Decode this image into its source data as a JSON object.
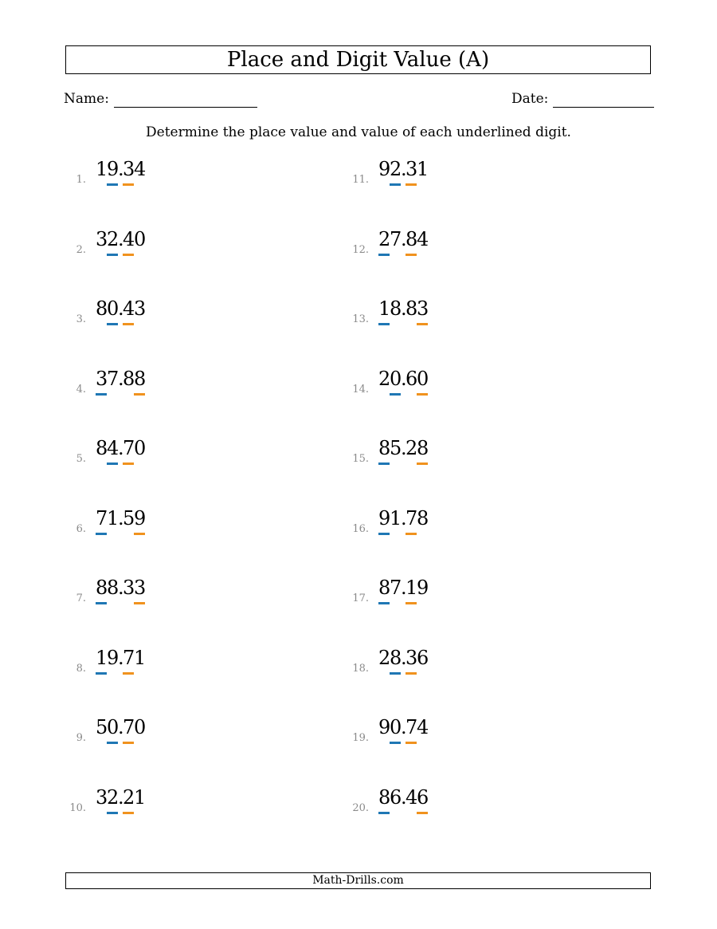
{
  "title": "Place and Digit Value (A)",
  "name_label": "Name:",
  "date_label": "Date:",
  "instructions": "Determine the place value and value of each underlined digit.",
  "footer": "Math-Drills.com",
  "colors": {
    "first_underline": "#1f77b4",
    "second_underline": "#f0921e"
  },
  "problems": [
    {
      "num": "1.",
      "value": "19.34",
      "underline_first": 1,
      "underline_second": 3
    },
    {
      "num": "2.",
      "value": "32.40",
      "underline_first": 1,
      "underline_second": 3
    },
    {
      "num": "3.",
      "value": "80.43",
      "underline_first": 1,
      "underline_second": 3
    },
    {
      "num": "4.",
      "value": "37.88",
      "underline_first": 0,
      "underline_second": 4
    },
    {
      "num": "5.",
      "value": "84.70",
      "underline_first": 1,
      "underline_second": 3
    },
    {
      "num": "6.",
      "value": "71.59",
      "underline_first": 0,
      "underline_second": 4
    },
    {
      "num": "7.",
      "value": "88.33",
      "underline_first": 0,
      "underline_second": 4
    },
    {
      "num": "8.",
      "value": "19.71",
      "underline_first": 0,
      "underline_second": 3
    },
    {
      "num": "9.",
      "value": "50.70",
      "underline_first": 1,
      "underline_second": 3
    },
    {
      "num": "10.",
      "value": "32.21",
      "underline_first": 1,
      "underline_second": 3
    },
    {
      "num": "11.",
      "value": "92.31",
      "underline_first": 1,
      "underline_second": 3
    },
    {
      "num": "12.",
      "value": "27.84",
      "underline_first": 0,
      "underline_second": 3
    },
    {
      "num": "13.",
      "value": "18.83",
      "underline_first": 0,
      "underline_second": 4
    },
    {
      "num": "14.",
      "value": "20.60",
      "underline_first": 1,
      "underline_second": 4
    },
    {
      "num": "15.",
      "value": "85.28",
      "underline_first": 0,
      "underline_second": 4
    },
    {
      "num": "16.",
      "value": "91.78",
      "underline_first": 0,
      "underline_second": 3
    },
    {
      "num": "17.",
      "value": "87.19",
      "underline_first": 0,
      "underline_second": 3
    },
    {
      "num": "18.",
      "value": "28.36",
      "underline_first": 1,
      "underline_second": 3
    },
    {
      "num": "19.",
      "value": "90.74",
      "underline_first": 1,
      "underline_second": 3
    },
    {
      "num": "20.",
      "value": "86.46",
      "underline_first": 0,
      "underline_second": 4
    }
  ]
}
